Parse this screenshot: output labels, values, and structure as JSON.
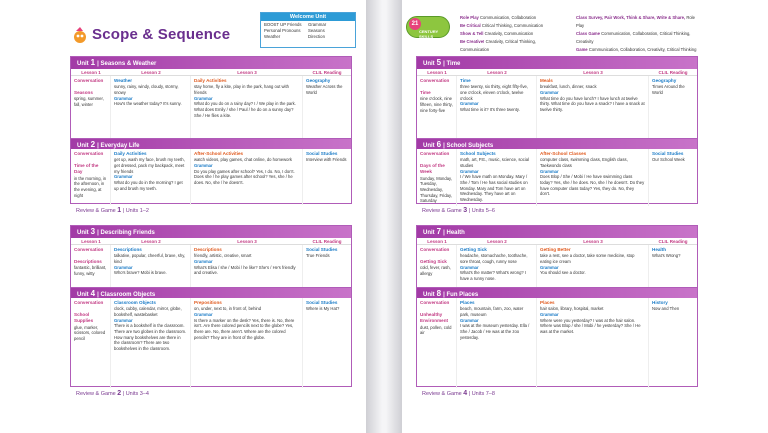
{
  "title": "Scope & Sequence",
  "welcome": {
    "title": "Welcome Unit",
    "items": [
      "BOOST UP Friends",
      "Grammar",
      "Personal Pronouns",
      "Seasons",
      "Weather",
      "Direction"
    ]
  },
  "skills": {
    "badge_num": "21",
    "badge_text": "CENTURY SKILLS",
    "rows": [
      {
        "name": "Role Play",
        "desc": "Communication, Collaboration"
      },
      {
        "name": "Be Critical",
        "desc": "Critical Thinking, Communication"
      },
      {
        "name": "Show & Tell",
        "desc": "Creativity, Communication"
      },
      {
        "name": "Be Creative!",
        "desc": "Creativity, Critical Thinking, Communication"
      },
      {
        "name": "Class Survey, Pair Work, Think & Share, Write & Share,",
        "desc": "Role Play"
      },
      {
        "name": "Class Game",
        "desc": "Communication, Collaboration, Critical Thinking, Creativity"
      },
      {
        "name": "Game",
        "desc": "Communication, Collaboration, Creativity, Critical Thinking"
      }
    ]
  },
  "cols": [
    "Lesson 1",
    "Lesson 2",
    "Lesson 3",
    "CLIL Reading"
  ],
  "units": [
    {
      "n": "1",
      "name": "Seasons & Weather",
      "c0h": "Conversation",
      "c0a": "Seasons",
      "c0b": "spring, summer, fall, winter",
      "c1h": "Weather",
      "c1a": "sunny, rainy, windy, cloudy, stormy, snowy",
      "c1g": "Grammar",
      "c1b": "How's the weather today? It's sunny.",
      "c2h": "Daily Activities",
      "c2a": "stay home, fly a kite, play in the park, hang out with friends",
      "c2g": "Grammar",
      "c2b": "What do you do on a rainy day? I / We play in the park. What does Emily / she / Paul / he do on a sunny day? She / He flies a kite.",
      "c3h": "Geography",
      "c3a": "Weather Across the World"
    },
    {
      "n": "2",
      "name": "Everyday Life",
      "c0h": "Conversation",
      "c0a": "Time of the Day",
      "c0b": "in the morning, in the afternoon, in the evening, at night",
      "c1h": "Daily Activities",
      "c1a": "get up, wash my face, brush my teeth, get dressed, pack my backpack, meet my friends",
      "c1g": "Grammar",
      "c1b": "What do you do in the morning? I get up and brush my teeth.",
      "c2h": "After-School Activities",
      "c2a": "watch videos, play games, chat online, do homework",
      "c2g": "Grammar",
      "c2b": "Do you play games after school? Yes, I do. No, I don't. Does she / he play games after school? Yes, she / he does. No, she / he doesn't.",
      "c3h": "Social Studies",
      "c3a": "Interview with Friends"
    },
    {
      "n": "3",
      "name": "Describing Friends",
      "c0h": "Conversation",
      "c0a": "Descriptions",
      "c0b": "fantastic, brilliant, funny, witty",
      "c1h": "Descriptions",
      "c1a": "talkative, popular, cheerful, brave, shy, kind",
      "c1g": "Grammar",
      "c1b": "Who's brave? Mobi is brave.",
      "c2h": "Descriptions",
      "c2a": "friendly, artistic, creative, smart",
      "c2g": "Grammar",
      "c2b": "What's Elisa / she / Mobi / he like? She's / He's friendly and creative.",
      "c3h": "Social Studies",
      "c3a": "True Friends"
    },
    {
      "n": "4",
      "name": "Classroom Objects",
      "c0h": "Conversation",
      "c0a": "School Supplies",
      "c0b": "glue, marker, scissors, colored pencil",
      "c1h": "Classroom Objects",
      "c1a": "clock, cubby, calendar, mirror, globe, bookshelf, wastebasket",
      "c1g": "Grammar",
      "c1b": "There is a bookshelf in the classroom. There are two globes in the classroom. How many bookshelves are there in the classroom? There are two bookshelves in the classroom.",
      "c2h": "Prepositions",
      "c2a": "on, under, next to, in front of, behind",
      "c2g": "Grammar",
      "c2b": "Is there a marker on the desk? Yes, there is. No, there isn't. Are there colored pencils next to the globe? Yes, there are. No, there aren't. Where are the colored pencils? They are in front of the globe.",
      "c3h": "Social Studies",
      "c3a": "Where is My Hat?"
    },
    {
      "n": "5",
      "name": "Time",
      "c0h": "Conversation",
      "c0a": "Time",
      "c0b": "nine o'clock, nine fifteen, nine thirty, nine forty-five",
      "c1h": "Time",
      "c1a": "three twenty, six thirty, eight fifty-five, one o'clock, eleven o'clock, twelve o'clock",
      "c1g": "Grammar",
      "c1b": "What time is it? It's three twenty.",
      "c2h": "Meals",
      "c2a": "breakfast, lunch, dinner, snack",
      "c2g": "Grammar",
      "c2b": "What time do you have lunch? I have lunch at twelve thirty. What time do you have a snack? I have a snack at twelve thirty.",
      "c3h": "Geography",
      "c3a": "Times Around the World"
    },
    {
      "n": "6",
      "name": "School Subjects",
      "c0h": "Conversation",
      "c0a": "Days of the Week",
      "c0b": "Sunday, Monday, Tuesday, Wednesday, Thursday, Friday, Saturday",
      "c1h": "School Subjects",
      "c1a": "math, art, P.E., music, science, social studies",
      "c1g": "Grammar",
      "c1b": "I / We have math on Monday. Mary / She / Tom / He has social studies on Monday. Mary and Tom have art on Wednesday. They have art on Wednesday.",
      "c2h": "After-School Classes",
      "c2a": "computer class, swimming class, English class, Taekwondo class",
      "c2g": "Grammar",
      "c2b": "Does Blop / She / Mobi / He have swimming class today? Yes, she / he does. No, she / he doesn't. Do they have computer class today? Yes, they do. No, they don't.",
      "c3h": "Social Studies",
      "c3a": "Our School Week"
    },
    {
      "n": "7",
      "name": "Health",
      "c0h": "Conversation",
      "c0a": "Getting Sick",
      "c0b": "cold, fever, rash, allergy",
      "c1h": "Getting Sick",
      "c1a": "headache, stomachache, toothache, sore throat, cough, runny nose",
      "c1g": "Grammar",
      "c1b": "What's the matter? What's wrong? I have a runny nose.",
      "c2h": "Getting Better",
      "c2a": "take a rest, see a doctor, take some medicine, stop eating ice cream",
      "c2g": "Grammar",
      "c2b": "You should see a doctor.",
      "c3h": "Health",
      "c3a": "What's Wrong?"
    },
    {
      "n": "8",
      "name": "Fun Places",
      "c0h": "Conversation",
      "c0a": "Unhealthy Environment",
      "c0b": "dust, pollen, cold air",
      "c1h": "Places",
      "c1a": "beach, mountain, farm, zoo, water park, museum",
      "c1g": "Grammar",
      "c1b": "I was at the museum yesterday. Ella / She / Jacob / He was at the zoo yesterday.",
      "c2h": "Places",
      "c2a": "hair salon, library, hospital, market",
      "c2g": "Grammar",
      "c2b": "Where were you yesterday? I was at the hair salon. Where was Blop / she / Mobi / he yesterday? She / He was at the market.",
      "c3h": "History",
      "c3a": "Now and Then"
    }
  ],
  "reviews": [
    {
      "label": "Review & Game",
      "n": "1",
      "units": "Units 1–2"
    },
    {
      "label": "Review & Game",
      "n": "2",
      "units": "Units 3–4"
    },
    {
      "label": "Review & Game",
      "n": "3",
      "units": "Units 5–6"
    },
    {
      "label": "Review & Game",
      "n": "4",
      "units": "Units 7–8"
    }
  ],
  "unit_word": "Unit"
}
